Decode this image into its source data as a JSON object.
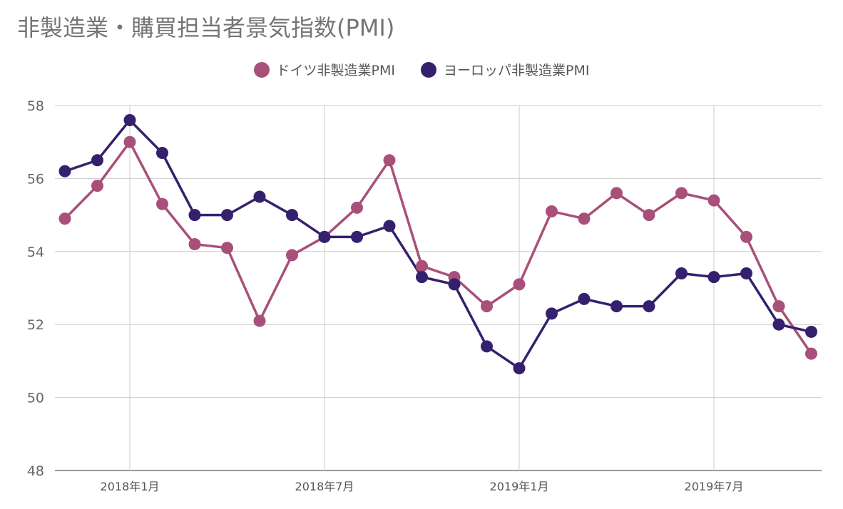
{
  "title": "非製造業・購買担当者景気指数(PMI)",
  "colors": {
    "germany": "#a8507a",
    "europe": "#35206e",
    "grid": "#cccccc",
    "axis": "#333333"
  },
  "chart_data": {
    "type": "line",
    "title": "非製造業・購買担当者景気指数(PMI)",
    "xlabel": "",
    "ylabel": "",
    "ylim": [
      48,
      58
    ],
    "yticks": [
      48,
      50,
      52,
      54,
      56,
      58
    ],
    "x": [
      "2017-11",
      "2017-12",
      "2018-01",
      "2018-02",
      "2018-03",
      "2018-04",
      "2018-05",
      "2018-06",
      "2018-07",
      "2018-08",
      "2018-09",
      "2018-10",
      "2018-11",
      "2018-12",
      "2019-01",
      "2019-02",
      "2019-03",
      "2019-04",
      "2019-05",
      "2019-06",
      "2019-07",
      "2019-08",
      "2019-09",
      "2019-10"
    ],
    "xtick_labels": [
      {
        "x": "2018-01",
        "label": "2018年1月"
      },
      {
        "x": "2018-07",
        "label": "2018年7月"
      },
      {
        "x": "2019-01",
        "label": "2019年1月"
      },
      {
        "x": "2019-07",
        "label": "2019年7月"
      }
    ],
    "legend_position": "top-center",
    "grid": true,
    "series": [
      {
        "name": "ドイツ非製造業PMI",
        "color": "#a8507a",
        "values": [
          54.9,
          55.8,
          57.0,
          55.3,
          54.2,
          54.1,
          52.1,
          53.9,
          54.4,
          55.2,
          56.5,
          53.6,
          53.3,
          52.5,
          53.1,
          55.1,
          54.9,
          55.6,
          55.0,
          55.6,
          55.4,
          54.4,
          52.5,
          51.2
        ]
      },
      {
        "name": "ヨーロッパ非製造業PMI",
        "color": "#35206e",
        "values": [
          56.2,
          56.5,
          57.6,
          56.7,
          55.0,
          55.0,
          55.5,
          55.0,
          54.4,
          54.4,
          54.7,
          53.3,
          53.1,
          51.4,
          50.8,
          52.3,
          52.7,
          52.5,
          52.5,
          53.4,
          53.3,
          53.4,
          52.0,
          51.8
        ]
      }
    ]
  }
}
